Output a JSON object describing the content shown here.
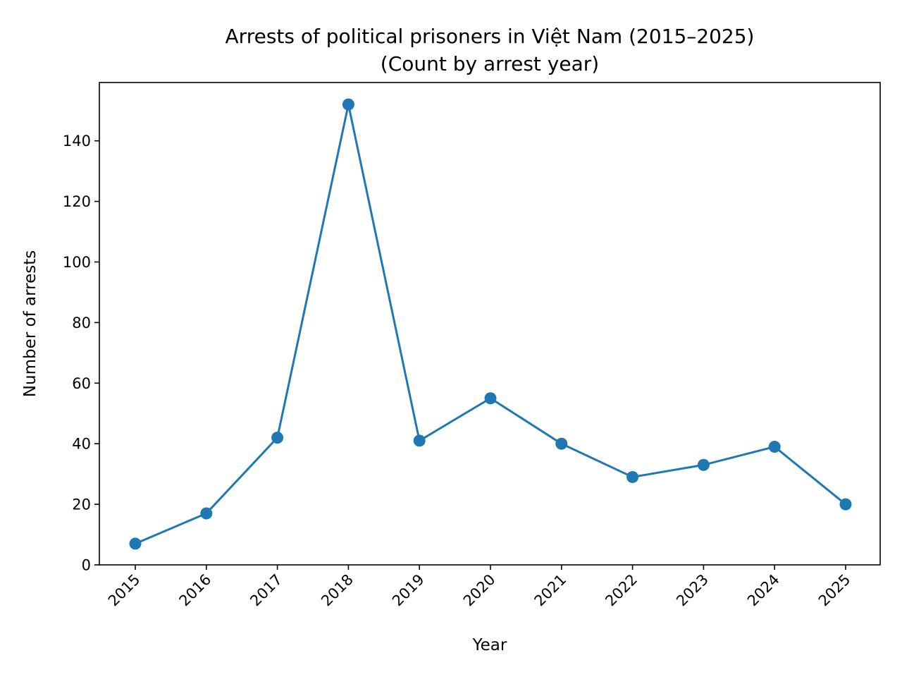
{
  "colors": {
    "series": "#1f77b4",
    "axes": "#000000",
    "background": "#ffffff"
  },
  "chart_data": {
    "type": "line",
    "title": "Arrests of political prisoners in Việt Nam (2015–2025)",
    "subtitle": "(Count by arrest year)",
    "xlabel": "Year",
    "ylabel": "Number of arrests",
    "x": [
      "2015",
      "2016",
      "2017",
      "2018",
      "2019",
      "2020",
      "2021",
      "2022",
      "2023",
      "2024",
      "2025"
    ],
    "series": [
      {
        "values": [
          7,
          17,
          42,
          152,
          41,
          55,
          40,
          29,
          33,
          39,
          20
        ],
        "marker": "circle"
      }
    ],
    "ylim": [
      0,
      159.25
    ],
    "yticks": [
      0,
      20,
      40,
      60,
      80,
      100,
      120,
      140
    ],
    "xtick_rotation": 45,
    "grid": false,
    "legend": "none"
  }
}
